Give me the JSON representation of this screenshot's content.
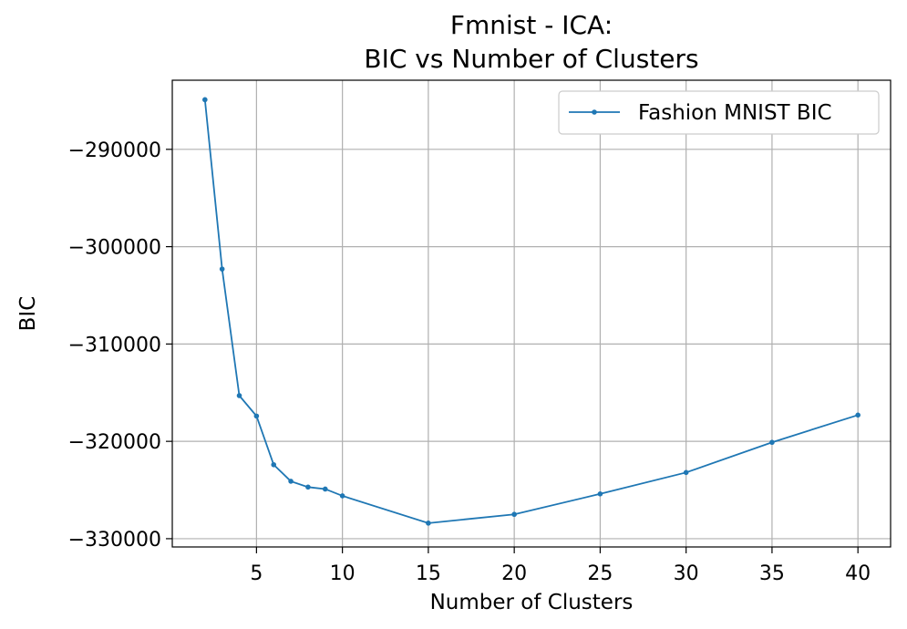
{
  "chart_data": {
    "type": "line",
    "title_line1": "Fmnist - ICA:",
    "title_line2": "BIC vs Number of Clusters",
    "xlabel": "Number of Clusters",
    "ylabel": "BIC",
    "xlim": [
      0.1,
      41.9
    ],
    "ylim": [
      -330850,
      -282900
    ],
    "xticks": [
      5,
      10,
      15,
      20,
      25,
      30,
      35,
      40
    ],
    "xtick_labels": [
      "5",
      "10",
      "15",
      "20",
      "25",
      "30",
      "35",
      "40"
    ],
    "yticks": [
      -290000,
      -300000,
      -310000,
      -320000,
      -330000
    ],
    "ytick_labels": [
      "−290000",
      "−300000",
      "−310000",
      "−320000",
      "−330000"
    ],
    "grid": true,
    "legend_position": "upper-right",
    "series": [
      {
        "name": "Fashion MNIST BIC",
        "color": "#1f77b4",
        "marker": "circle",
        "x": [
          2,
          3,
          4,
          5,
          6,
          7,
          8,
          9,
          10,
          15,
          20,
          25,
          30,
          35,
          40
        ],
        "y": [
          -284900,
          -302300,
          -315300,
          -317400,
          -322400,
          -324100,
          -324700,
          -324900,
          -325600,
          -328400,
          -327500,
          -325400,
          -323200,
          -320100,
          -317300
        ]
      }
    ]
  }
}
